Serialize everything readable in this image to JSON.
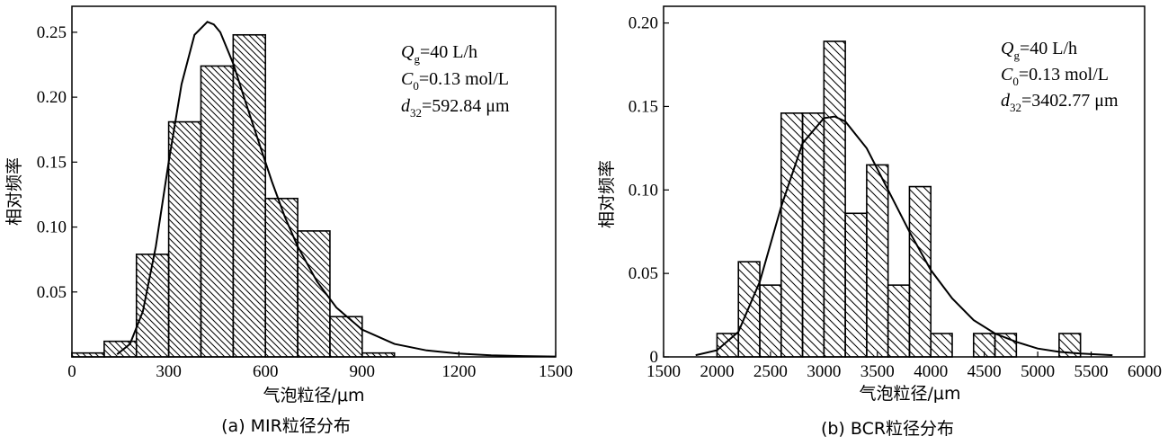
{
  "chart_data": [
    {
      "type": "bar",
      "panel": "a",
      "caption": "(a) MIR粒径分布",
      "xlabel": "气泡粒径/μm",
      "ylabel": "相对频率",
      "xlim": [
        0,
        1500
      ],
      "ylim": [
        0,
        0.27
      ],
      "xticks": [
        0,
        300,
        600,
        900,
        1200,
        1500
      ],
      "xtick_labels": [
        "0",
        "300",
        "600",
        "900",
        "1200",
        "1500"
      ],
      "yticks": [
        0.05,
        0.1,
        0.15,
        0.2,
        0.25
      ],
      "ytick_labels": [
        "0.05",
        "0.10",
        "0.15",
        "0.20",
        "0.25"
      ],
      "bins": [
        {
          "x0": 0,
          "x1": 100,
          "value": 0.003
        },
        {
          "x0": 100,
          "x1": 200,
          "value": 0.012
        },
        {
          "x0": 200,
          "x1": 300,
          "value": 0.079
        },
        {
          "x0": 300,
          "x1": 400,
          "value": 0.181
        },
        {
          "x0": 400,
          "x1": 500,
          "value": 0.224
        },
        {
          "x0": 500,
          "x1": 600,
          "value": 0.248
        },
        {
          "x0": 600,
          "x1": 700,
          "value": 0.122
        },
        {
          "x0": 700,
          "x1": 800,
          "value": 0.097
        },
        {
          "x0": 800,
          "x1": 900,
          "value": 0.031
        },
        {
          "x0": 900,
          "x1": 1000,
          "value": 0.003
        }
      ],
      "fit_curve": {
        "x": [
          140,
          180,
          220,
          260,
          300,
          340,
          380,
          420,
          440,
          460,
          500,
          540,
          580,
          620,
          660,
          700,
          760,
          820,
          900,
          1000,
          1100,
          1200,
          1300,
          1400,
          1500
        ],
        "y": [
          0.002,
          0.01,
          0.035,
          0.085,
          0.15,
          0.21,
          0.248,
          0.258,
          0.256,
          0.25,
          0.226,
          0.195,
          0.165,
          0.135,
          0.108,
          0.085,
          0.058,
          0.038,
          0.021,
          0.01,
          0.005,
          0.0025,
          0.0012,
          0.0006,
          0.0003
        ]
      },
      "annotations": {
        "q_symbol": "Q",
        "q_sub": "g",
        "q_rest": "=40 L/h",
        "c_symbol": "C",
        "c_sub": "0",
        "c_rest": "=0.13 mol/L",
        "d_symbol": "d",
        "d_sub": "32",
        "d_rest": "=592.84 μm"
      }
    },
    {
      "type": "bar",
      "panel": "b",
      "caption": "(b) BCR粒径分布",
      "xlabel": "气泡粒径/μm",
      "ylabel": "相对频率",
      "xlim": [
        1500,
        6000
      ],
      "ylim": [
        0,
        0.21
      ],
      "xticks": [
        1500,
        2000,
        2500,
        3000,
        3500,
        4000,
        4500,
        5000,
        5500,
        6000
      ],
      "xtick_labels": [
        "1500",
        "2000",
        "2500",
        "3000",
        "3500",
        "4000",
        "4500",
        "5000",
        "5500",
        "6000"
      ],
      "yticks": [
        0,
        0.05,
        0.1,
        0.15,
        0.2
      ],
      "ytick_labels": [
        "0",
        "0.05",
        "0.10",
        "0.15",
        "0.20"
      ],
      "bins": [
        {
          "x0": 2000,
          "x1": 2200,
          "value": 0.014
        },
        {
          "x0": 2200,
          "x1": 2400,
          "value": 0.057
        },
        {
          "x0": 2400,
          "x1": 2600,
          "value": 0.043
        },
        {
          "x0": 2600,
          "x1": 2800,
          "value": 0.146
        },
        {
          "x0": 2800,
          "x1": 3000,
          "value": 0.146
        },
        {
          "x0": 3000,
          "x1": 3200,
          "value": 0.189
        },
        {
          "x0": 3200,
          "x1": 3400,
          "value": 0.086
        },
        {
          "x0": 3400,
          "x1": 3600,
          "value": 0.115
        },
        {
          "x0": 3600,
          "x1": 3800,
          "value": 0.043
        },
        {
          "x0": 3800,
          "x1": 4000,
          "value": 0.102
        },
        {
          "x0": 4000,
          "x1": 4200,
          "value": 0.014
        },
        {
          "x0": 4400,
          "x1": 4600,
          "value": 0.014
        },
        {
          "x0": 4600,
          "x1": 4800,
          "value": 0.014
        },
        {
          "x0": 5200,
          "x1": 5400,
          "value": 0.014
        }
      ],
      "fit_curve": {
        "x": [
          1800,
          2000,
          2200,
          2400,
          2600,
          2800,
          3000,
          3100,
          3200,
          3400,
          3600,
          3800,
          4000,
          4200,
          4400,
          4600,
          4800,
          5000,
          5200,
          5400,
          5700
        ],
        "y": [
          0.001,
          0.004,
          0.015,
          0.045,
          0.09,
          0.128,
          0.143,
          0.144,
          0.141,
          0.125,
          0.1,
          0.075,
          0.052,
          0.035,
          0.022,
          0.014,
          0.009,
          0.005,
          0.003,
          0.002,
          0.001
        ]
      },
      "annotations": {
        "q_symbol": "Q",
        "q_sub": "g",
        "q_rest": "=40 L/h",
        "c_symbol": "C",
        "c_sub": "0",
        "c_rest": "=0.13 mol/L",
        "d_symbol": "d",
        "d_sub": "32",
        "d_rest": "=3402.77 μm"
      }
    }
  ]
}
